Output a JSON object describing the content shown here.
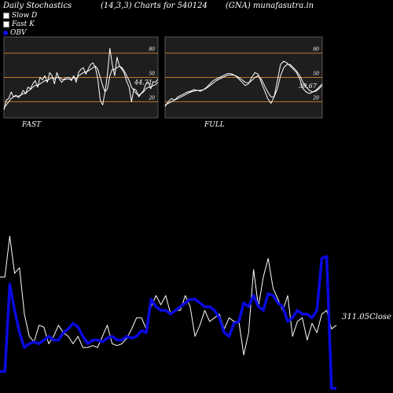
{
  "header": {
    "title_left": "Daily Stochastics",
    "title_mid": "(14,3,3) Charts for 540124",
    "title_right": "(GNA) munafasutra.in"
  },
  "legend": [
    {
      "label": "Slow  D",
      "color": "#ffffff"
    },
    {
      "label": "Fast K",
      "color": "#ffffff"
    },
    {
      "label": "OBV",
      "color": "#1010ee"
    }
  ],
  "chart_data": [
    {
      "type": "line",
      "title": "FAST",
      "yticks": [
        20,
        50,
        80
      ],
      "ylim": [
        0,
        100
      ],
      "last_value_label": "44.71",
      "series": [
        {
          "name": "Fast K",
          "values": [
            10,
            22,
            24,
            32,
            26,
            28,
            25,
            28,
            34,
            30,
            38,
            36,
            42,
            46,
            38,
            50,
            47,
            52,
            44,
            56,
            52,
            42,
            56,
            48,
            44,
            48,
            50,
            50,
            46,
            52,
            44,
            56,
            60,
            62,
            54,
            60,
            66,
            68,
            62,
            48,
            22,
            16,
            32,
            54,
            86,
            66,
            52,
            75,
            64,
            60,
            55,
            45,
            38,
            20,
            36,
            34,
            26,
            30,
            34,
            42,
            44,
            36,
            45,
            44,
            48
          ]
        },
        {
          "name": "Slow D",
          "values": [
            12,
            16,
            20,
            24,
            26,
            27,
            27,
            28,
            30,
            30,
            33,
            35,
            38,
            40,
            40,
            42,
            44,
            46,
            46,
            48,
            50,
            48,
            50,
            50,
            48,
            47,
            48,
            48,
            48,
            50,
            48,
            52,
            54,
            56,
            57,
            58,
            60,
            62,
            64,
            60,
            50,
            40,
            32,
            36,
            52,
            60,
            60,
            62,
            64,
            62,
            58,
            52,
            46,
            38,
            34,
            30,
            28,
            30,
            32,
            36,
            38,
            38,
            40,
            41,
            44
          ]
        }
      ]
    },
    {
      "type": "line",
      "title": "FULL",
      "yticks": [
        20,
        50,
        80
      ],
      "ylim": [
        0,
        100
      ],
      "last_value_label": "39.67",
      "series": [
        {
          "name": "Fast K",
          "values": [
            14,
            20,
            24,
            22,
            26,
            28,
            30,
            32,
            33,
            35,
            34,
            33,
            35,
            38,
            42,
            46,
            48,
            50,
            52,
            54,
            55,
            54,
            52,
            48,
            44,
            40,
            42,
            50,
            56,
            54,
            44,
            34,
            24,
            18,
            26,
            46,
            66,
            70,
            68,
            64,
            60,
            56,
            48,
            36,
            32,
            30,
            32,
            34,
            38,
            42
          ]
        },
        {
          "name": "Slow D",
          "values": [
            16,
            18,
            20,
            22,
            24,
            26,
            28,
            30,
            32,
            33,
            34,
            34,
            35,
            37,
            40,
            43,
            46,
            48,
            50,
            52,
            53,
            53,
            52,
            50,
            47,
            44,
            43,
            46,
            50,
            52,
            48,
            40,
            32,
            26,
            26,
            36,
            52,
            62,
            66,
            66,
            62,
            58,
            52,
            44,
            38,
            34,
            32,
            33,
            36,
            40
          ]
        }
      ]
    },
    {
      "type": "line",
      "y_label": "Close",
      "last_value_label": "311.05",
      "series": [
        {
          "name": "Close",
          "values": [
            60,
            60,
            82,
            62,
            65,
            40,
            28,
            25,
            34,
            33,
            24,
            28,
            34,
            30,
            28,
            24,
            28,
            22,
            22,
            23,
            22,
            28,
            34,
            24,
            23,
            24,
            27,
            32,
            38,
            38,
            32,
            44,
            50,
            45,
            50,
            40,
            42,
            42,
            50,
            44,
            28,
            34,
            42,
            36,
            38,
            40,
            32,
            38,
            36,
            36,
            18,
            30,
            64,
            44,
            60,
            70,
            54,
            48,
            42,
            50,
            28,
            36,
            38,
            26,
            35,
            30,
            40,
            42,
            32,
            34
          ]
        },
        {
          "name": "OBV",
          "values": [
            9,
            9,
            56,
            42,
            30,
            22,
            24,
            25,
            24,
            26,
            28,
            26,
            26,
            30,
            32,
            35,
            33,
            28,
            24,
            26,
            26,
            25,
            27,
            28,
            26,
            26,
            28,
            27,
            28,
            31,
            30,
            48,
            44,
            42,
            42,
            40,
            42,
            44,
            46,
            48,
            48,
            46,
            44,
            44,
            42,
            38,
            30,
            28,
            35,
            36,
            46,
            44,
            50,
            44,
            42,
            51,
            50,
            46,
            44,
            36,
            38,
            42,
            40,
            40,
            38,
            42,
            70,
            71,
            0,
            0
          ]
        }
      ]
    }
  ],
  "colors": {
    "background": "#000000",
    "panel": "#1e1e1e",
    "grid_band": "#c0782a",
    "stoch_line": "#ffffff",
    "obv_line": "#0a0ae0"
  }
}
